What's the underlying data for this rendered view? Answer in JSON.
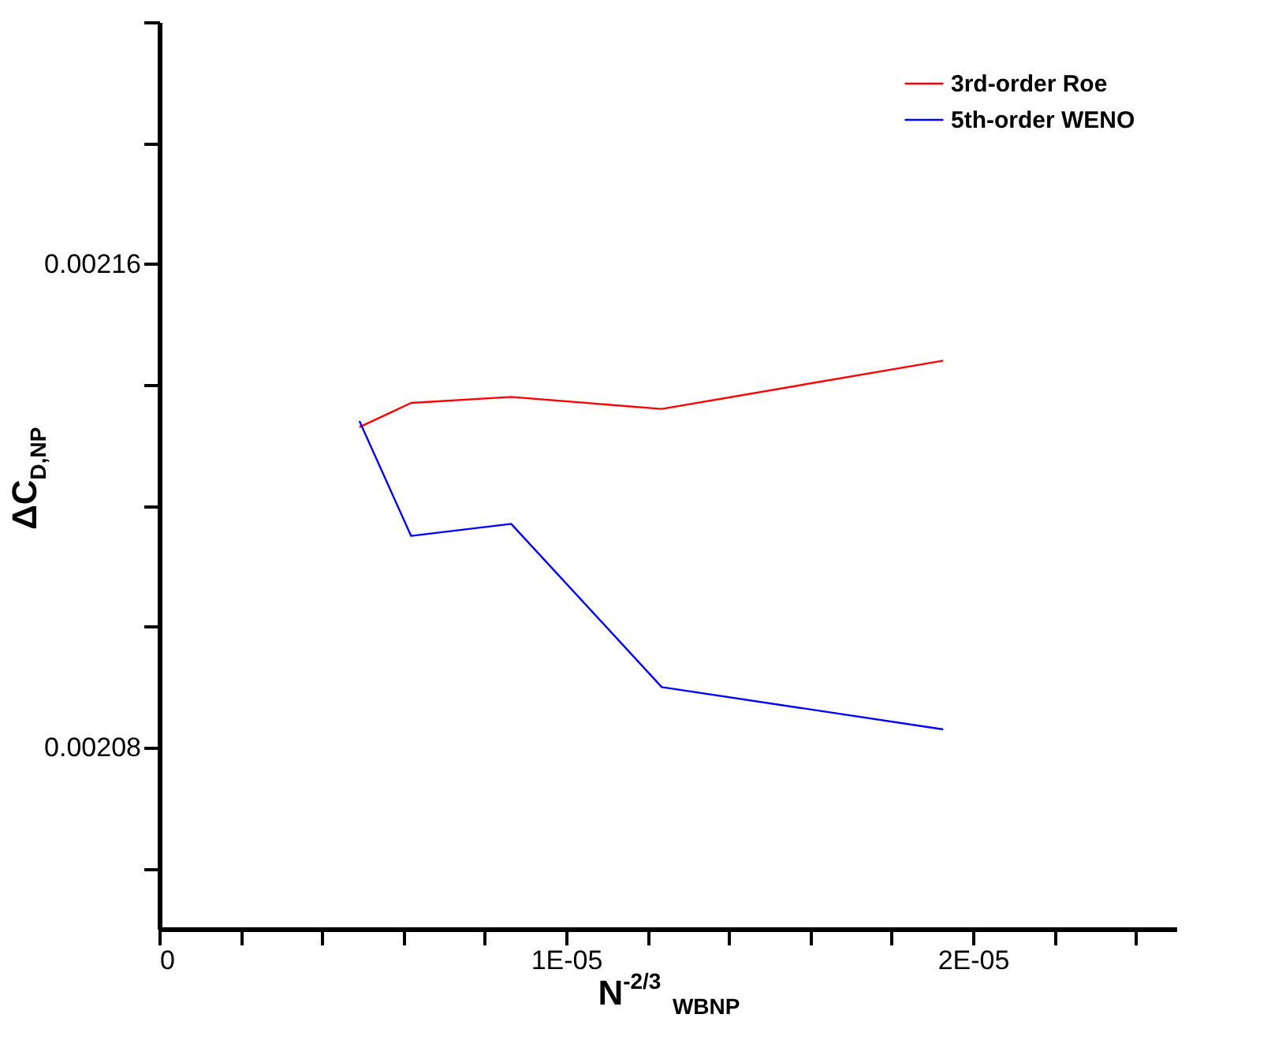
{
  "chart_data": {
    "type": "line",
    "xlabel": "N$^{-2/3}$$_{WBNP}$",
    "ylabel": "ΔC$_{D,NP}$",
    "xlim": [
      0,
      2.5e-05
    ],
    "ylim": [
      0.00205,
      0.0022
    ],
    "xticks": [
      {
        "value": 0,
        "label": "0"
      },
      {
        "value": 2e-06,
        "label": null
      },
      {
        "value": 4e-06,
        "label": null
      },
      {
        "value": 6e-06,
        "label": null
      },
      {
        "value": 8e-06,
        "label": null
      },
      {
        "value": 1e-05,
        "label": "1E-05"
      },
      {
        "value": 1.2e-05,
        "label": null
      },
      {
        "value": 1.4e-05,
        "label": null
      },
      {
        "value": 1.6e-05,
        "label": null
      },
      {
        "value": 1.8e-05,
        "label": null
      },
      {
        "value": 2e-05,
        "label": "2E-05"
      },
      {
        "value": 2.2e-05,
        "label": null
      },
      {
        "value": 2.4e-05,
        "label": null
      }
    ],
    "yticks": [
      {
        "value": 0.00206,
        "label": null
      },
      0.00208,
      {
        "value": 0.0021,
        "label": null
      },
      {
        "value": 0.00212,
        "label": null
      },
      {
        "value": 0.00214,
        "label": null
      },
      0.00216,
      {
        "value": 0.00218,
        "label": null
      },
      {
        "value": 0.0022,
        "label": null
      }
    ],
    "x": [
      4.92e-06,
      6.19e-06,
      8.65e-06,
      1.235e-05,
      1.927e-05
    ],
    "series": [
      {
        "name": "3rd-order Roe",
        "color": "#ff0000",
        "values": [
          0.002133,
          0.002137,
          0.002138,
          0.002136,
          0.002144
        ]
      },
      {
        "name": "5th-order WENO",
        "color": "#0000ff",
        "values": [
          0.002134,
          0.002115,
          0.002117,
          0.00209,
          0.002083
        ]
      }
    ],
    "grid": false,
    "legend": "top right",
    "marker": "none",
    "line_style": "solid"
  }
}
